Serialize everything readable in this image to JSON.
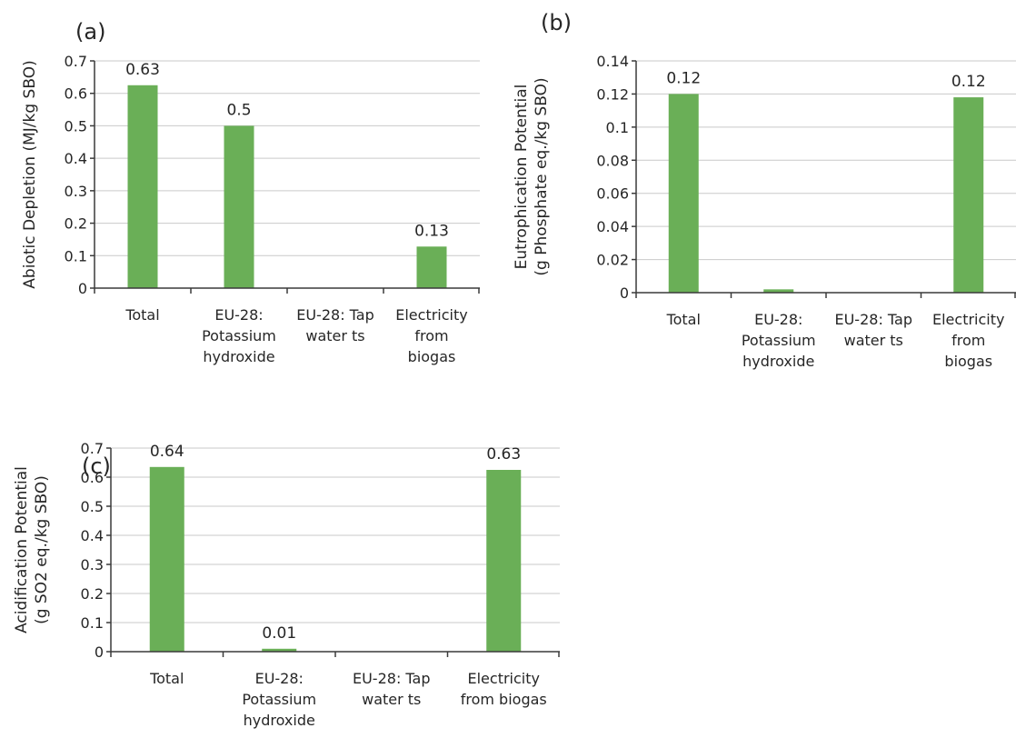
{
  "colors": {
    "bar": "#6aaf57"
  },
  "chart_data": [
    {
      "type": "bar",
      "panel_label": "(a)",
      "ylabel_lines": [
        "Abiotic Depletion (MJ/kg SBO)"
      ],
      "ylim": [
        0,
        0.7
      ],
      "yticks": [
        "0",
        "0.1",
        "0.2",
        "0.3",
        "0.4",
        "0.5",
        "0.6",
        "0.7"
      ],
      "categories": [
        [
          "Total"
        ],
        [
          "EU-28:",
          "Potassium",
          "hydroxide"
        ],
        [
          "EU-28: Tap",
          "water ts"
        ],
        [
          "Electricity",
          "from",
          "biogas"
        ]
      ],
      "values": [
        0.625,
        0.5,
        0,
        0.128
      ],
      "data_labels": [
        "0.63",
        "0.5",
        "",
        "0.13"
      ],
      "grid": true
    },
    {
      "type": "bar",
      "panel_label": "(b)",
      "ylabel_lines": [
        "Eutrophication Potential",
        "(g Phosphate eq./kg SBO)"
      ],
      "ylim": [
        0,
        0.14
      ],
      "yticks": [
        "0",
        "0.02",
        "0.04",
        "0.06",
        "0.08",
        "0.1",
        "0.12",
        "0.14"
      ],
      "categories": [
        [
          "Total"
        ],
        [
          "EU-28:",
          "Potassium",
          "hydroxide"
        ],
        [
          "EU-28: Tap",
          "water ts"
        ],
        [
          "Electricity",
          "from",
          "biogas"
        ]
      ],
      "values": [
        0.12,
        0.002,
        0,
        0.118
      ],
      "data_labels": [
        "0.12",
        "",
        "",
        "0.12"
      ],
      "grid": true
    },
    {
      "type": "bar",
      "panel_label": "(c)",
      "ylabel_lines": [
        "Acidification Potential",
        "(g SO2 eq./kg SBO)"
      ],
      "ylim": [
        0,
        0.7
      ],
      "yticks": [
        "0",
        "0.1",
        "0.2",
        "0.3",
        "0.4",
        "0.5",
        "0.6",
        "0.7"
      ],
      "categories": [
        [
          "Total"
        ],
        [
          "EU-28:",
          "Potassium",
          "hydroxide"
        ],
        [
          "EU-28: Tap",
          "water ts"
        ],
        [
          "Electricity",
          "from biogas"
        ]
      ],
      "values": [
        0.635,
        0.01,
        0,
        0.625
      ],
      "data_labels": [
        "0.64",
        "0.01",
        "",
        "0.63"
      ],
      "grid": true
    }
  ]
}
